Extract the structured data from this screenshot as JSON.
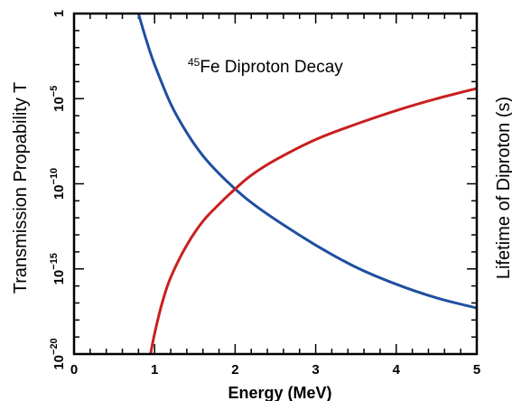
{
  "chart_data": {
    "type": "line",
    "title": "",
    "annotation": {
      "superscript": "45",
      "text": "Fe Diproton Decay"
    },
    "xlabel": "Energy (MeV)",
    "ylabel_left": "Transmission Propability T",
    "ylabel_right": "Lifetime of Diproton (s)",
    "xlim": [
      0,
      5
    ],
    "ylim_log10": [
      -20,
      0
    ],
    "y_scale": "log",
    "grid": false,
    "x_ticks": [
      "0",
      "1",
      "2",
      "3",
      "4",
      "5"
    ],
    "y_ticks": [
      {
        "base": "1",
        "exp": ""
      },
      {
        "base": "10",
        "exp": "−5"
      },
      {
        "base": "10",
        "exp": "−10"
      },
      {
        "base": "10",
        "exp": "−15"
      },
      {
        "base": "10",
        "exp": "−20"
      }
    ],
    "series": [
      {
        "color": "#1f4fa0",
        "x": [
          0.8,
          0.9,
          1.0,
          1.2,
          1.4,
          1.6,
          1.8,
          2.0,
          2.2,
          2.5,
          3.0,
          3.5,
          4.0,
          4.5,
          5.0
        ],
        "y_log10": [
          0.0,
          -1.6,
          -3.0,
          -5.3,
          -7.0,
          -8.35,
          -9.4,
          -10.3,
          -11.1,
          -12.1,
          -13.6,
          -14.9,
          -15.9,
          -16.7,
          -17.3
        ]
      },
      {
        "color": "#c8201e",
        "x": [
          0.95,
          1.0,
          1.1,
          1.2,
          1.4,
          1.6,
          1.8,
          2.0,
          2.2,
          2.5,
          3.0,
          3.5,
          4.0,
          4.5,
          5.0
        ],
        "y_log10": [
          -20.0,
          -18.8,
          -16.9,
          -15.5,
          -13.6,
          -12.2,
          -11.2,
          -10.3,
          -9.5,
          -8.6,
          -7.4,
          -6.5,
          -5.7,
          -5.0,
          -4.4
        ]
      }
    ]
  }
}
